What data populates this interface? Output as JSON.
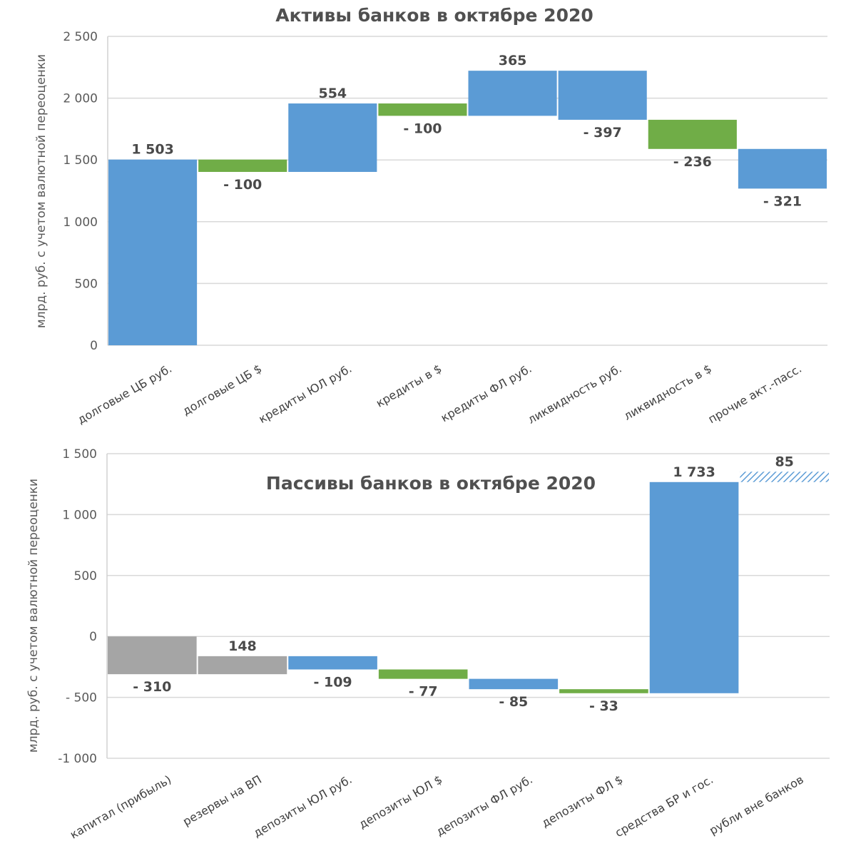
{
  "colors": {
    "blue": "#5b9bd5",
    "green": "#70ad47",
    "gray": "#a5a5a5",
    "hatch": "#5b9bd5"
  },
  "chart_data": [
    {
      "type": "bar",
      "subtype": "waterfall",
      "title": "Активы банков в октябре 2020",
      "xlabel": "",
      "ylabel": "млрд. руб. с учетом валютной переоценки",
      "ylim": [
        0,
        2500
      ],
      "yticks": [
        0,
        500,
        1000,
        1500,
        2000,
        2500
      ],
      "ytick_labels": [
        "0",
        "500",
        "1 000",
        "1 500",
        "2 000",
        "2 500"
      ],
      "grid": true,
      "categories": [
        "долговые ЦБ руб.",
        "долговые ЦБ $",
        "кредиты ЮЛ руб.",
        "кредиты в $",
        "кредиты ФЛ руб.",
        "ликвидность руб.",
        "ликвидность в $",
        "прочие акт.-пасс."
      ],
      "values": [
        1503,
        -100,
        554,
        -100,
        365,
        -397,
        -236,
        -321
      ],
      "data_labels": [
        "1 503",
        "- 100",
        "554",
        "- 100",
        "365",
        "- 397",
        "- 236",
        "- 321"
      ],
      "colors": [
        "blue",
        "green",
        "blue",
        "green",
        "blue",
        "blue",
        "green",
        "blue"
      ],
      "start": 0
    },
    {
      "type": "bar",
      "subtype": "waterfall",
      "title": "Пассивы банков в октябре 2020",
      "xlabel": "",
      "ylabel": "млрд. руб. с учетом валютной переоценки",
      "ylim": [
        -1000,
        1500
      ],
      "yticks": [
        -1000,
        -500,
        0,
        500,
        1000,
        1500
      ],
      "ytick_labels": [
        "-1 000",
        "- 500",
        "0",
        "500",
        "1 000",
        "1 500"
      ],
      "grid": true,
      "categories": [
        "капитал (прибыль)",
        "резервы на ВП",
        "депозиты ЮЛ руб.",
        "депозиты ЮЛ $",
        "депозиты ФЛ руб.",
        "депозиты ФЛ $",
        "средства БР и гос.",
        "рубли вне банков"
      ],
      "values": [
        -310,
        148,
        -109,
        -77,
        -85,
        -33,
        1733,
        85
      ],
      "data_labels": [
        "- 310",
        "148",
        "- 109",
        "- 77",
        "- 85",
        "- 33",
        "1 733",
        "85"
      ],
      "colors": [
        "gray",
        "gray",
        "blue",
        "green",
        "blue",
        "green",
        "blue",
        "hatch"
      ],
      "start": 0
    }
  ]
}
